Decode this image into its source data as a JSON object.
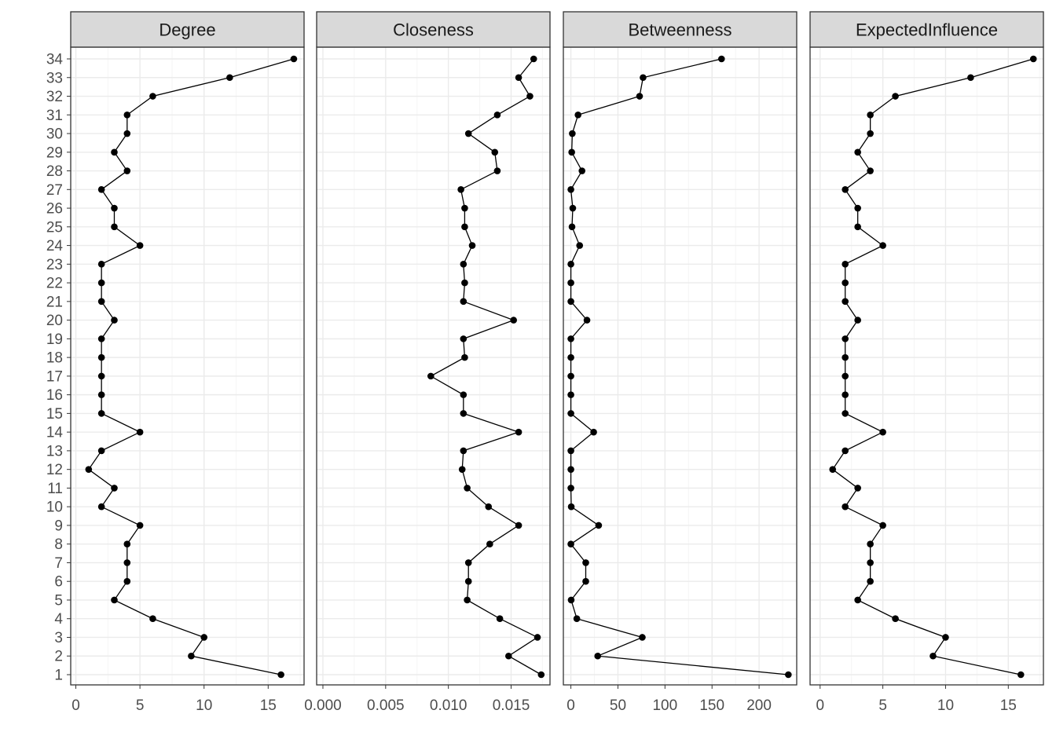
{
  "chart_data": {
    "type": "line",
    "layout": "faceted",
    "facet_order": [
      "Degree",
      "Closeness",
      "Betweenness",
      "ExpectedInfluence"
    ],
    "y_categories": [
      "1",
      "2",
      "3",
      "4",
      "5",
      "6",
      "7",
      "8",
      "9",
      "10",
      "11",
      "12",
      "13",
      "14",
      "15",
      "16",
      "17",
      "18",
      "19",
      "20",
      "21",
      "22",
      "23",
      "24",
      "25",
      "26",
      "27",
      "28",
      "29",
      "30",
      "31",
      "32",
      "33",
      "34"
    ],
    "grid": true,
    "colors": {
      "line": "#000000",
      "point": "#000000",
      "strip_fill": "#d9d9d9",
      "grid_major": "#ebebeb",
      "grid_minor": "#f5f5f5",
      "panel_border": "#333333",
      "tick_text": "#4d4d4d"
    },
    "facets": [
      {
        "name": "Degree",
        "xlim": [
          -0.4,
          17.8
        ],
        "xticks": [
          0,
          5,
          10,
          15
        ],
        "xtick_labels": [
          "0",
          "5",
          "10",
          "15"
        ],
        "values": [
          16,
          9,
          10,
          6,
          3,
          4,
          4,
          4,
          5,
          2,
          3,
          1,
          2,
          5,
          2,
          2,
          2,
          2,
          2,
          3,
          2,
          2,
          2,
          5,
          3,
          3,
          2,
          4,
          3,
          4,
          4,
          6,
          12,
          17
        ]
      },
      {
        "name": "Closeness",
        "xlim": [
          -0.0005,
          0.0181
        ],
        "xticks": [
          0,
          0.005,
          0.01,
          0.015
        ],
        "xtick_labels": [
          "0.000",
          "0.005",
          "0.010",
          "0.015"
        ],
        "values": [
          0.0174,
          0.0148,
          0.0171,
          0.0141,
          0.0115,
          0.0116,
          0.0116,
          0.0133,
          0.0156,
          0.0132,
          0.0115,
          0.0111,
          0.0112,
          0.0156,
          0.0112,
          0.0112,
          0.0086,
          0.0113,
          0.0112,
          0.0152,
          0.0112,
          0.0113,
          0.0112,
          0.0119,
          0.0113,
          0.0113,
          0.011,
          0.0139,
          0.0137,
          0.0116,
          0.0139,
          0.0165,
          0.0156,
          0.0168
        ]
      },
      {
        "name": "Betweenness",
        "xlim": [
          -8,
          240
        ],
        "xticks": [
          0,
          50,
          100,
          150,
          200
        ],
        "xtick_labels": [
          "0",
          "50",
          "100",
          "150",
          "200"
        ],
        "values": [
          231.1,
          28.5,
          75.9,
          6.3,
          0.3,
          15.8,
          15.8,
          0,
          29.5,
          0.4,
          0,
          0,
          0,
          24.2,
          0,
          0,
          0,
          0,
          0,
          17.1,
          0,
          0,
          0,
          9.3,
          1.2,
          2,
          0,
          11.8,
          0.9,
          1.5,
          7.6,
          73,
          76.7,
          160.1
        ]
      },
      {
        "name": "ExpectedInfluence",
        "xlim": [
          -0.8,
          17.8
        ],
        "xticks": [
          0,
          5,
          10,
          15
        ],
        "xtick_labels": [
          "0",
          "5",
          "10",
          "15"
        ],
        "values": [
          16,
          9,
          10,
          6,
          3,
          4,
          4,
          4,
          5,
          2,
          3,
          1,
          2,
          5,
          2,
          2,
          2,
          2,
          2,
          3,
          2,
          2,
          2,
          5,
          3,
          3,
          2,
          4,
          3,
          4,
          4,
          6,
          12,
          17
        ]
      }
    ]
  }
}
